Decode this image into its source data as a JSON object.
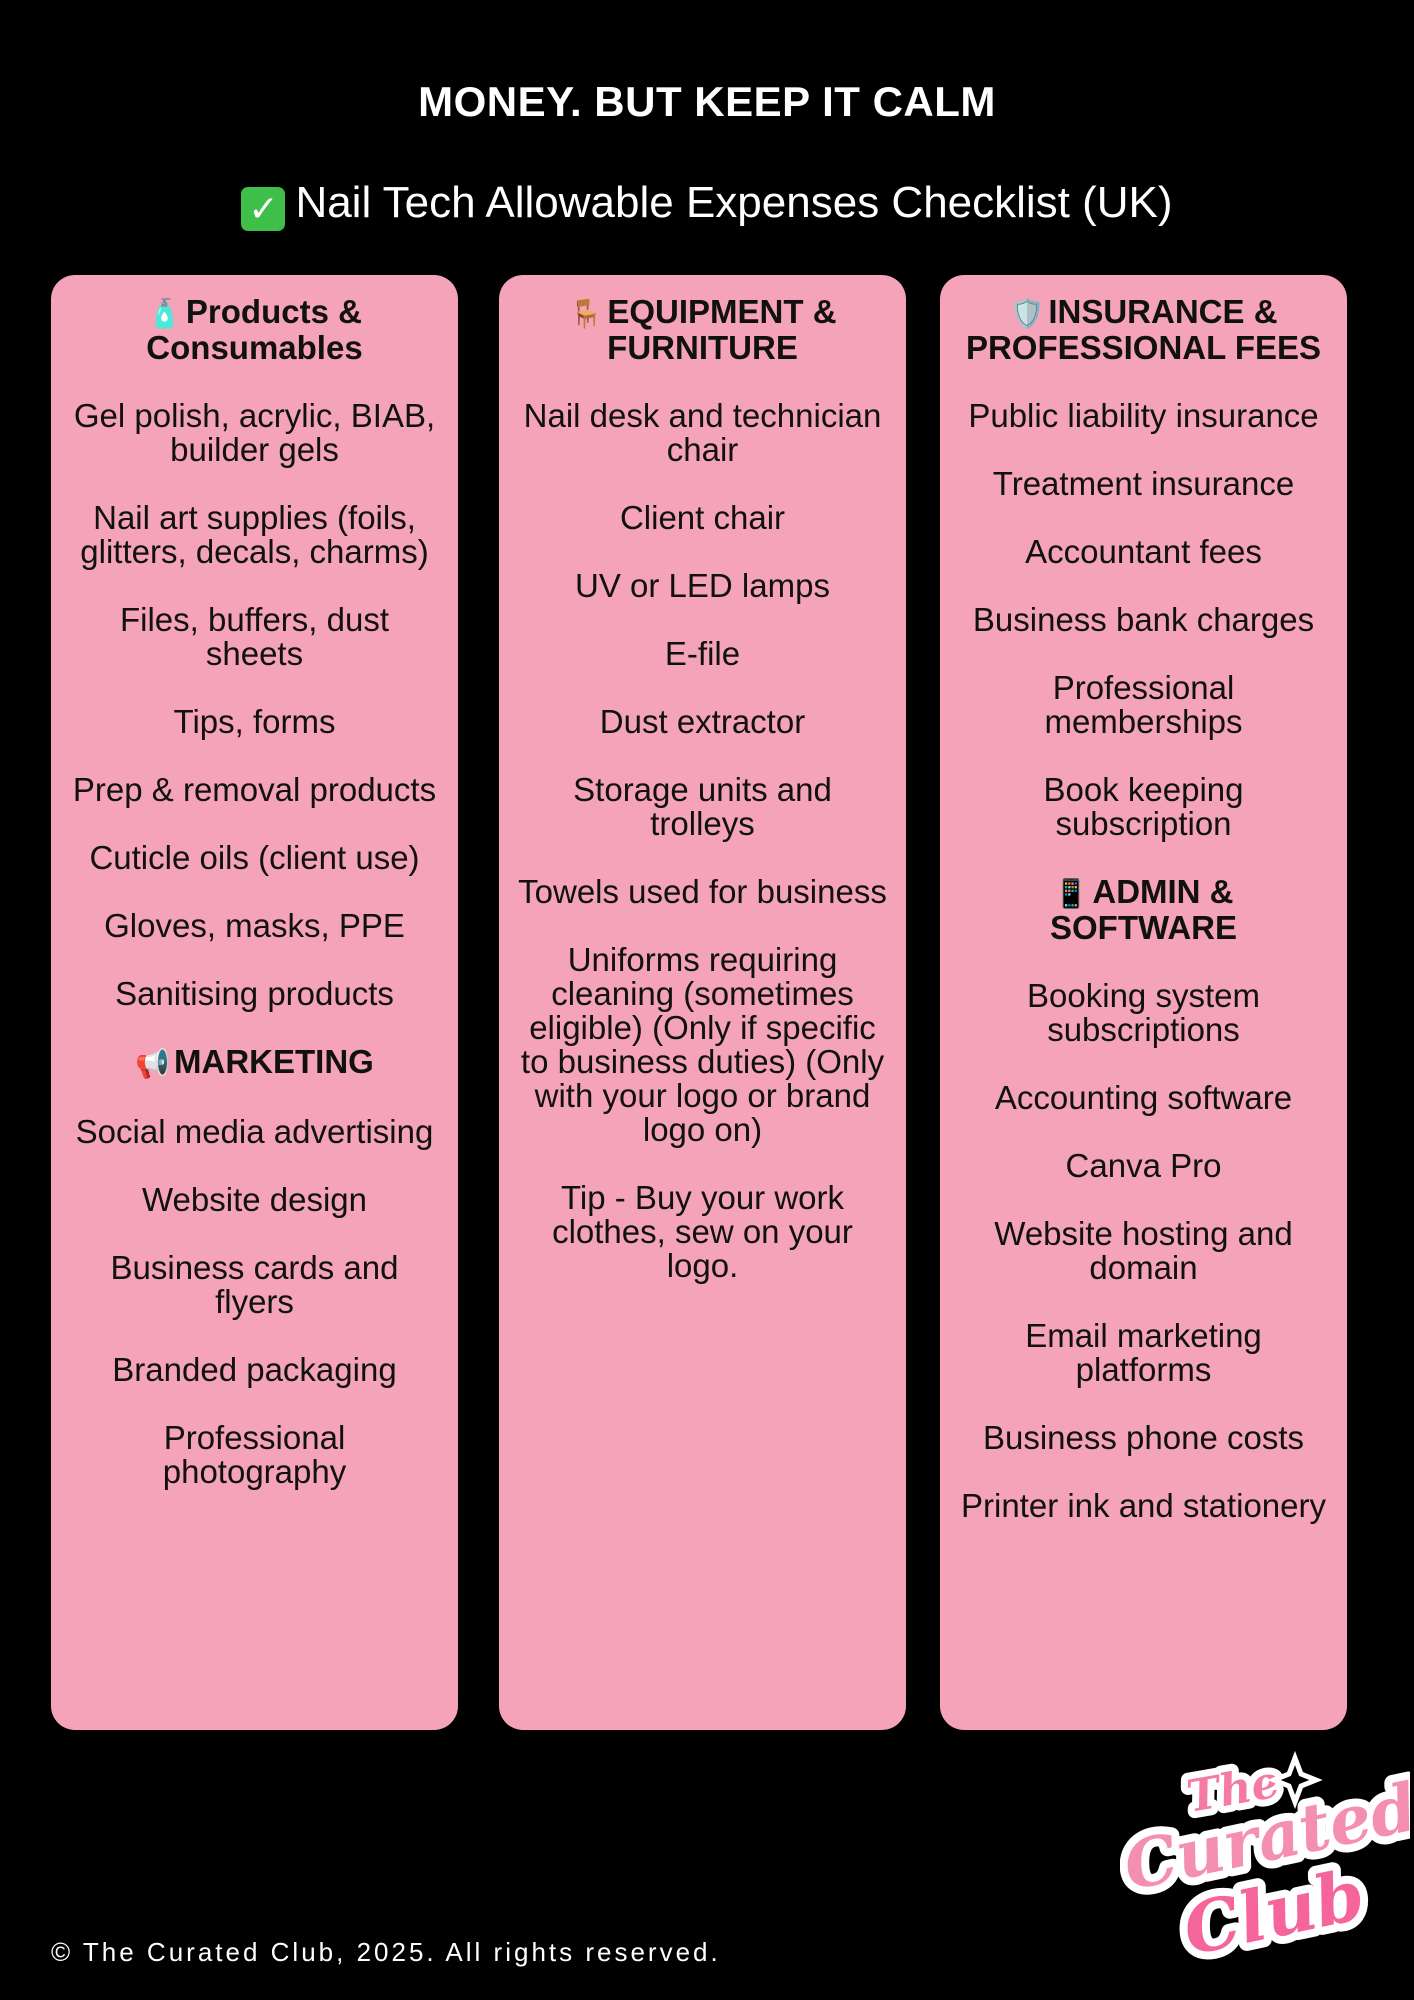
{
  "title": "MONEY. BUT KEEP IT CALM",
  "subtitle": "Nail Tech Allowable Expenses Checklist (UK)",
  "subtitle_icon": "check-mark-button-icon",
  "colors": {
    "background": "#000000",
    "panel": "#f4a3b8",
    "text": "#111111",
    "logo_pink": "#f57aa6"
  },
  "columns": [
    {
      "sections": [
        {
          "icon": "lotion-bottle-icon",
          "glyph": "🧴",
          "heading": "Products & Consumables",
          "items": [
            "Gel polish, acrylic, BIAB, builder gels",
            "Nail art supplies (foils, glitters, decals, charms)",
            "Files, buffers, dust sheets",
            "Tips, forms",
            "Prep & removal products",
            "Cuticle oils (client use)",
            "Gloves, masks, PPE",
            "Sanitising products"
          ]
        },
        {
          "icon": "megaphone-icon",
          "glyph": "📢",
          "heading": "MARKETING",
          "items": [
            "Social media advertising",
            "Website design",
            "Business cards and flyers",
            "Branded packaging",
            "Professional photography"
          ]
        }
      ]
    },
    {
      "sections": [
        {
          "icon": "chair-icon",
          "glyph": "🪑",
          "heading": "EQUIPMENT & FURNITURE",
          "items": [
            "Nail desk and technician chair",
            "Client chair",
            "UV or LED lamps",
            "E-file",
            "Dust extractor",
            "Storage units and trolleys",
            "Towels used for business",
            "Uniforms requiring cleaning (sometimes eligible) (Only if specific to business duties) (Only with your logo or brand logo on)",
            "Tip - Buy your work clothes, sew on your logo."
          ]
        }
      ]
    },
    {
      "sections": [
        {
          "icon": "shield-icon",
          "glyph": "🛡️",
          "heading": "INSURANCE & PROFESSIONAL FEES",
          "items": [
            "Public liability insurance",
            "Treatment insurance",
            "Accountant fees",
            "Business bank charges",
            "Professional memberships",
            "Book keeping subscription"
          ]
        },
        {
          "icon": "mobile-phone-icon",
          "glyph": "📱",
          "heading": "ADMIN & SOFTWARE",
          "items": [
            "Booking system subscriptions",
            "Accounting software",
            "Canva Pro",
            "Website hosting and domain",
            "Email marketing platforms",
            "Business phone costs",
            "Printer ink and stationery"
          ]
        }
      ]
    }
  ],
  "logo": {
    "line1": "The",
    "line2": "Curated",
    "line3": "Club"
  },
  "footer": "© The Curated Club, 2025. All rights reserved."
}
